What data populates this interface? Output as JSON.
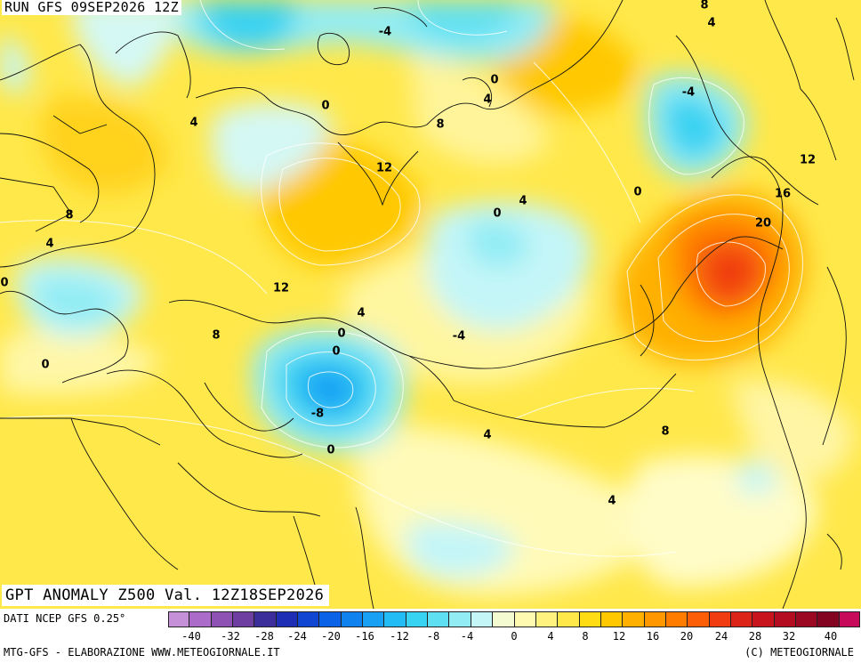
{
  "header": {
    "run_title": "RUN GFS 09SEP2026 12Z",
    "map_title": "GPT ANOMALY Z500 Val. 12Z18SEP2026"
  },
  "map": {
    "contour_labels": [
      "-4",
      "8",
      "4",
      "0",
      "4",
      "0",
      "8",
      "4",
      "-4",
      "12",
      "0",
      "12",
      "16",
      "20",
      "8",
      "4",
      "0",
      "0",
      "4",
      "12",
      "4",
      "0",
      "-4",
      "0",
      "8",
      "-8",
      "0",
      "4",
      "8",
      "4",
      "0"
    ]
  },
  "legend": {
    "data_source": "DATI NCEP GFS 0.25°",
    "ticks": [
      "-40",
      "-32",
      "-28",
      "-24",
      "-20",
      "-16",
      "-12",
      "-8",
      "-4",
      "0",
      "4",
      "8",
      "12",
      "16",
      "20",
      "24",
      "28",
      "32",
      "40"
    ],
    "colors": [
      "#c690d8",
      "#aa6cc8",
      "#8e52b4",
      "#6e3ea0",
      "#3b2e9a",
      "#1e2fb6",
      "#1046d2",
      "#0a63e6",
      "#0f82f0",
      "#18a0f4",
      "#23bcf4",
      "#38d2f2",
      "#5ee0f2",
      "#92ecf4",
      "#c4f6f8",
      "#f4fbd0",
      "#fffab0",
      "#fff27e",
      "#ffe84a",
      "#ffdc14",
      "#ffc800",
      "#ffb000",
      "#ff9700",
      "#ff7c00",
      "#fc5e08",
      "#f03c10",
      "#dc2418",
      "#c8141c",
      "#b40c20",
      "#9a0822",
      "#820420",
      "#c80a5a"
    ]
  },
  "footer": {
    "credit_left": "MTG-GFS - ELABORAZIONE WWW.METEOGIORNALE.IT",
    "credit_right": "(C) METEOGIORNALE"
  }
}
